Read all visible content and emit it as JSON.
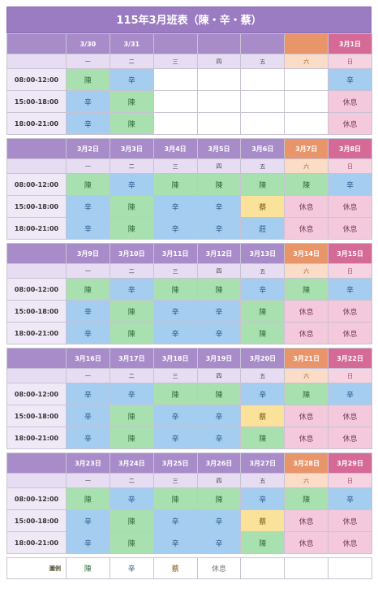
{
  "title": "115年3月班表（陳・辛・蔡）",
  "weekdays": [
    "一",
    "二",
    "三",
    "四",
    "五",
    "六",
    "日"
  ],
  "shift_times": [
    "08:00-12:00",
    "15:00-18:00",
    "18:00-21:00"
  ],
  "weeks": [
    {
      "dates": [
        "3/30",
        "3/31",
        "",
        "",
        "",
        "",
        "3月1日"
      ],
      "shifts": [
        [
          "陳",
          "辛",
          "",
          "",
          "",
          "",
          "辛"
        ],
        [
          "辛",
          "陳",
          "",
          "",
          "",
          "",
          "休息"
        ],
        [
          "辛",
          "陳",
          "",
          "",
          "",
          "",
          "休息"
        ]
      ]
    },
    {
      "dates": [
        "3月2日",
        "3月3日",
        "3月4日",
        "3月5日",
        "3月6日",
        "3月7日",
        "3月8日"
      ],
      "shifts": [
        [
          "陳",
          "辛",
          "陳",
          "陳",
          "陳",
          "陳",
          "辛"
        ],
        [
          "辛",
          "陳",
          "辛",
          "辛",
          "蔡",
          "休息",
          "休息"
        ],
        [
          "辛",
          "陳",
          "辛",
          "辛",
          "莊",
          "休息",
          "休息"
        ]
      ]
    },
    {
      "dates": [
        "3月9日",
        "3月10日",
        "3月11日",
        "3月12日",
        "3月13日",
        "3月14日",
        "3月15日"
      ],
      "shifts": [
        [
          "陳",
          "辛",
          "陳",
          "陳",
          "辛",
          "陳",
          "辛"
        ],
        [
          "辛",
          "陳",
          "辛",
          "辛",
          "陳",
          "休息",
          "休息"
        ],
        [
          "辛",
          "陳",
          "辛",
          "辛",
          "陳",
          "休息",
          "休息"
        ]
      ]
    },
    {
      "dates": [
        "3月16日",
        "3月17日",
        "3月18日",
        "3月19日",
        "3月20日",
        "3月21日",
        "3月22日"
      ],
      "shifts": [
        [
          "辛",
          "辛",
          "陳",
          "陳",
          "辛",
          "陳",
          "辛"
        ],
        [
          "辛",
          "陳",
          "辛",
          "辛",
          "蔡",
          "休息",
          "休息"
        ],
        [
          "辛",
          "陳",
          "辛",
          "辛",
          "陳",
          "休息",
          "休息"
        ]
      ]
    },
    {
      "dates": [
        "3月23日",
        "3月24日",
        "3月25日",
        "3月26日",
        "3月27日",
        "3月28日",
        "3月29日"
      ],
      "shifts": [
        [
          "陳",
          "辛",
          "陳",
          "陳",
          "辛",
          "陳",
          "辛"
        ],
        [
          "辛",
          "陳",
          "辛",
          "辛",
          "蔡",
          "休息",
          "休息"
        ],
        [
          "辛",
          "陳",
          "辛",
          "辛",
          "陳",
          "休息",
          "休息"
        ]
      ]
    }
  ],
  "legend": {
    "label": "圖例",
    "items": [
      "陳",
      "辛",
      "蔡",
      "休息"
    ]
  },
  "colors": {
    "header": "#9b7cc2",
    "saturday": "#e8956a",
    "sunday": "#d46a95",
    "chen": "#a9e0b0",
    "xin": "#a5cdf0",
    "cai": "#fae29a",
    "off": "#f4c9dc"
  }
}
